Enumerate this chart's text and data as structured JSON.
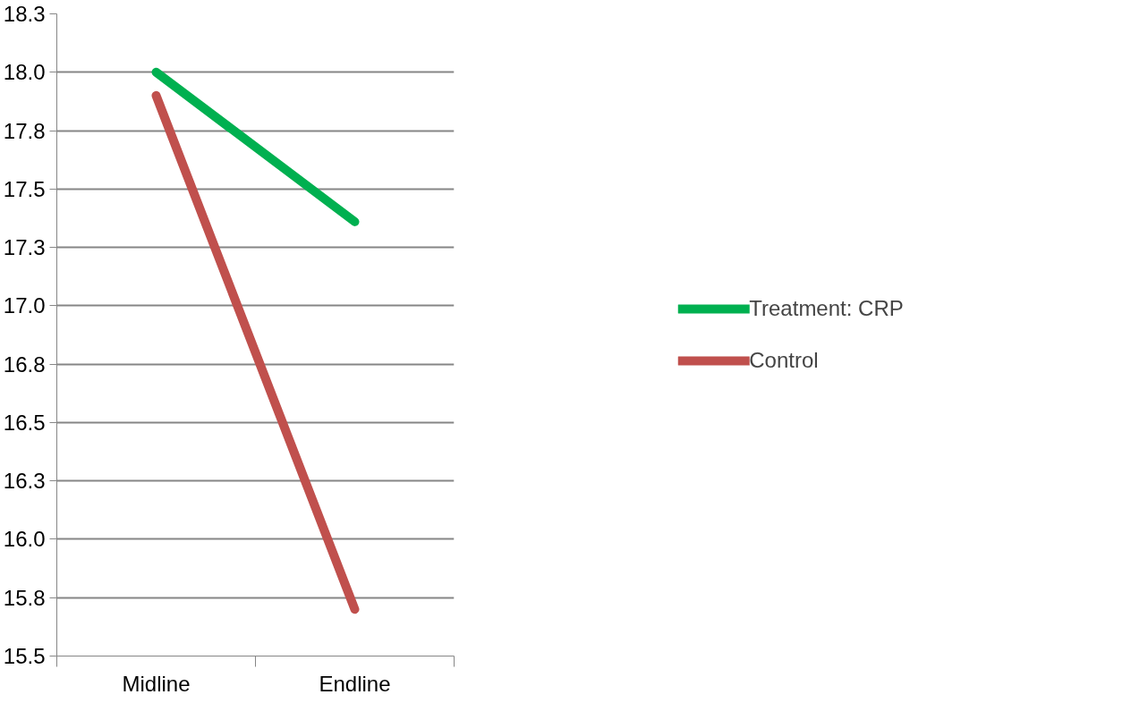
{
  "chart_data": {
    "type": "line",
    "categories": [
      "Midline",
      "Endline"
    ],
    "series": [
      {
        "name": "Treatment: CRP",
        "color": "#00b050",
        "values": [
          18.0,
          17.36
        ]
      },
      {
        "name": "Control",
        "color": "#c0504d",
        "values": [
          17.9,
          15.7
        ]
      }
    ],
    "ylim": [
      15.5,
      18.25
    ],
    "yticks": [
      15.5,
      {
        "value": 15.75,
        "label": "15.8"
      },
      {
        "value": 16,
        "label": "16.0"
      },
      {
        "value": 16.25,
        "label": "16.3"
      },
      16.5,
      {
        "value": 16.75,
        "label": "16.8"
      },
      {
        "value": 17,
        "label": "17.0"
      },
      {
        "value": 17.25,
        "label": "17.3"
      },
      17.5,
      {
        "value": 17.75,
        "label": "17.8"
      },
      {
        "value": 18,
        "label": "18.0"
      },
      {
        "value": 18.25,
        "label": "18.3"
      }
    ],
    "grid": "y",
    "legend": "right",
    "marker": "none",
    "line_style": "solid"
  }
}
